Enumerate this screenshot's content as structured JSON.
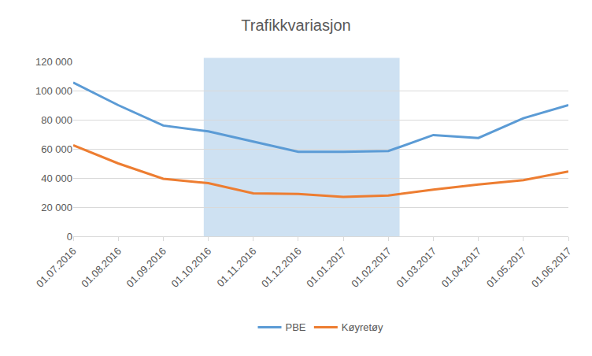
{
  "chart_data": {
    "type": "line",
    "title": "Trafikkvariasjon",
    "categories": [
      "01.07.2016",
      "01.08.2016",
      "01.09.2016",
      "01.10.2016",
      "01.11.2016",
      "01.12.2016",
      "01.01.2017",
      "01.02.2017",
      "01.03.2017",
      "01.04.2017",
      "01.05.2017",
      "01.06.2017"
    ],
    "series": [
      {
        "name": "PBE",
        "color": "#5b9bd5",
        "values": [
          105500,
          90000,
          76000,
          72000,
          65000,
          58000,
          58000,
          58500,
          69500,
          67500,
          81000,
          90000
        ]
      },
      {
        "name": "Køyretøy",
        "color": "#ed7d31",
        "values": [
          62500,
          50000,
          39500,
          36500,
          29500,
          29000,
          27000,
          28000,
          32000,
          35500,
          38500,
          44500
        ]
      }
    ],
    "ylim": [
      0,
      120000
    ],
    "yticks": [
      0,
      {
        "value": 20000,
        "label": "20 000"
      },
      {
        "value": 40000,
        "label": "40 000"
      },
      {
        "value": 60000,
        "label": "60 000"
      },
      {
        "value": 80000,
        "label": "80 000"
      },
      {
        "value": 100000,
        "label": "100 000"
      },
      {
        "value": 120000,
        "label": "120 000"
      }
    ],
    "grid": true,
    "legend": "bottom",
    "highlight": {
      "from": "01.10.2016",
      "to": "01.02.2017",
      "color": "#bdd7ee"
    }
  }
}
